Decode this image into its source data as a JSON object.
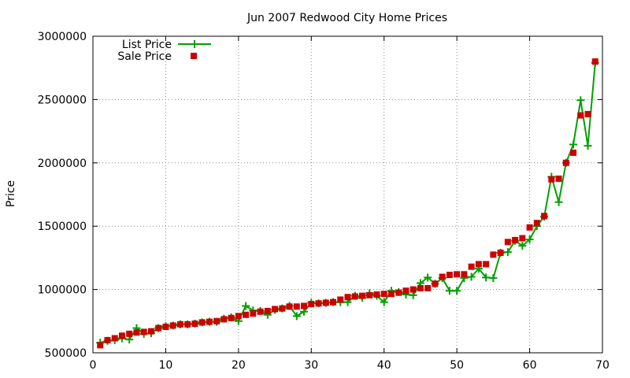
{
  "chart_data": {
    "type": "line",
    "title": "Jun 2007 Redwood City Home Prices",
    "xlabel": "",
    "ylabel": "Price",
    "xlim": [
      0,
      70
    ],
    "ylim": [
      500000,
      3000000
    ],
    "x_ticks": [
      0,
      10,
      20,
      30,
      40,
      50,
      60,
      70
    ],
    "y_ticks": [
      500000,
      1000000,
      1500000,
      2000000,
      2500000,
      3000000
    ],
    "grid": true,
    "legend_position": "top-left",
    "series": [
      {
        "name": "List Price",
        "style": "line-with-plus-markers",
        "color": "#00a000",
        "x": [
          1,
          2,
          3,
          4,
          5,
          6,
          7,
          8,
          9,
          10,
          11,
          12,
          13,
          14,
          15,
          16,
          17,
          18,
          19,
          20,
          21,
          22,
          23,
          24,
          25,
          26,
          27,
          28,
          29,
          30,
          31,
          32,
          33,
          34,
          35,
          36,
          37,
          38,
          39,
          40,
          41,
          42,
          43,
          44,
          45,
          46,
          47,
          48,
          49,
          50,
          51,
          52,
          53,
          54,
          55,
          56,
          57,
          58,
          59,
          60,
          61,
          62,
          63,
          64,
          65,
          66,
          67,
          68,
          69
        ],
        "values": [
          580000,
          595000,
          600000,
          615000,
          605000,
          695000,
          650000,
          655000,
          695000,
          710000,
          715000,
          725000,
          725000,
          730000,
          740000,
          745000,
          745000,
          770000,
          780000,
          750000,
          870000,
          835000,
          830000,
          800000,
          840000,
          850000,
          870000,
          790000,
          825000,
          895000,
          890000,
          895000,
          900000,
          900000,
          900000,
          950000,
          935000,
          970000,
          950000,
          900000,
          990000,
          980000,
          960000,
          955000,
          1050000,
          1095000,
          1045000,
          1090000,
          990000,
          990000,
          1090000,
          1100000,
          1165000,
          1095000,
          1090000,
          1290000,
          1295000,
          1385000,
          1345000,
          1395000,
          1500000,
          1575000,
          1890000,
          1690000,
          2000000,
          2145000,
          2495000,
          2135000,
          2790000
        ]
      },
      {
        "name": "Sale Price",
        "style": "square-markers",
        "color": "#cc0000",
        "x": [
          1,
          2,
          3,
          4,
          5,
          6,
          7,
          8,
          9,
          10,
          11,
          12,
          13,
          14,
          15,
          16,
          17,
          18,
          19,
          20,
          21,
          22,
          23,
          24,
          25,
          26,
          27,
          28,
          29,
          30,
          31,
          32,
          33,
          34,
          35,
          36,
          37,
          38,
          39,
          40,
          41,
          42,
          43,
          44,
          45,
          46,
          47,
          48,
          49,
          50,
          51,
          52,
          53,
          54,
          55,
          56,
          57,
          58,
          59,
          60,
          61,
          62,
          63,
          64,
          65,
          66,
          67,
          68,
          69
        ],
        "values": [
          560000,
          600000,
          615000,
          635000,
          650000,
          660000,
          665000,
          670000,
          695000,
          705000,
          715000,
          725000,
          725000,
          730000,
          740000,
          745000,
          750000,
          765000,
          775000,
          790000,
          800000,
          810000,
          825000,
          830000,
          845000,
          850000,
          865000,
          865000,
          870000,
          885000,
          890000,
          895000,
          900000,
          920000,
          940000,
          945000,
          950000,
          955000,
          960000,
          965000,
          965000,
          975000,
          990000,
          1000000,
          1010000,
          1010000,
          1045000,
          1100000,
          1115000,
          1120000,
          1120000,
          1180000,
          1200000,
          1200000,
          1275000,
          1290000,
          1375000,
          1390000,
          1405000,
          1490000,
          1525000,
          1580000,
          1870000,
          1875000,
          2000000,
          2080000,
          2375000,
          2385000,
          2800000
        ]
      }
    ]
  }
}
